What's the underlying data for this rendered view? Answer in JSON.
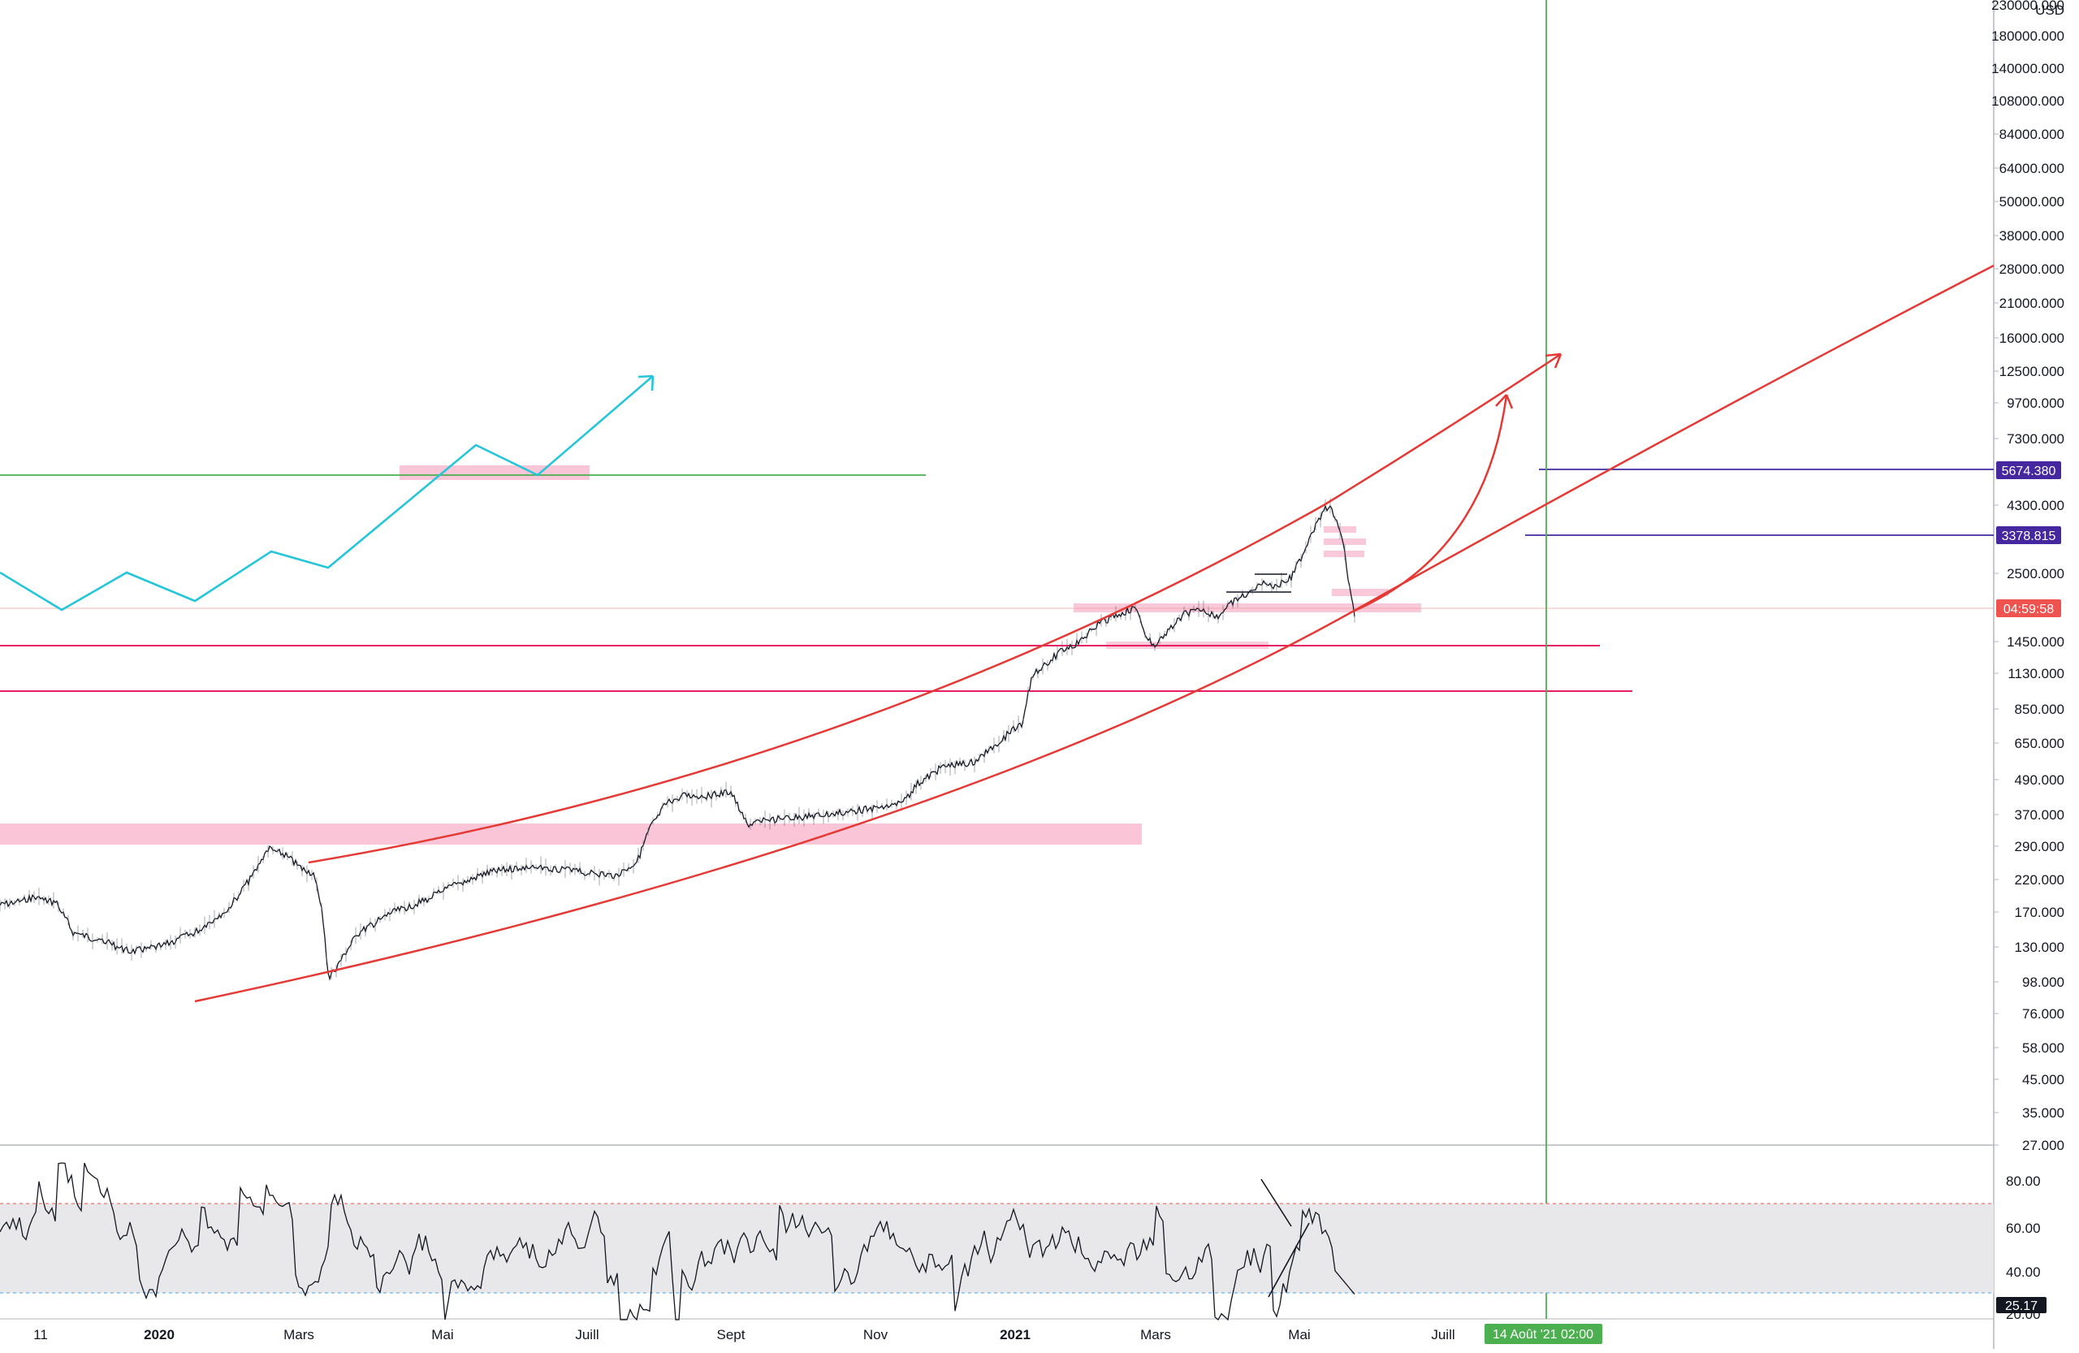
{
  "chart_data": {
    "type": "line",
    "title": "",
    "price_axis": {
      "currency": "USD",
      "scale": "log",
      "ticks": [
        "230000.000",
        "180000.000",
        "140000.000",
        "108000.000",
        "84000.000",
        "64000.000",
        "50000.000",
        "38000.000",
        "28000.000",
        "21000.000",
        "16000.000",
        "12500.000",
        "9700.000",
        "7300.000",
        "4300.000",
        "2500.000",
        "1450.000",
        "1130.000",
        "850.000",
        "650.000",
        "490.000",
        "370.000",
        "290.000",
        "220.000",
        "170.000",
        "130.000",
        "98.000",
        "76.000",
        "58.000",
        "45.000",
        "35.000",
        "27.000"
      ]
    },
    "price_badges": [
      {
        "label": "5674.380",
        "color": "#4527a0"
      },
      {
        "label": "3378.815",
        "color": "#4527a0"
      },
      {
        "label": "04:59:58",
        "color": "#ef5350"
      }
    ],
    "time_axis": {
      "ticks": [
        {
          "label": "11",
          "bold": false
        },
        {
          "label": "2020",
          "bold": true
        },
        {
          "label": "Mars",
          "bold": false
        },
        {
          "label": "Mai",
          "bold": false
        },
        {
          "label": "Juill",
          "bold": false
        },
        {
          "label": "Sept",
          "bold": false
        },
        {
          "label": "Nov",
          "bold": false
        },
        {
          "label": "2021",
          "bold": true
        },
        {
          "label": "Mars",
          "bold": false
        },
        {
          "label": "Mai",
          "bold": false
        },
        {
          "label": "Juill",
          "bold": false
        }
      ],
      "cursor_label": "14 Août '21   02:00"
    },
    "rsi": {
      "ticks": [
        "80.00",
        "60.00",
        "40.00",
        "20.00"
      ],
      "current_label": "25.17",
      "upper_band": 70,
      "lower_band": 30
    },
    "colors": {
      "channel": "#e53935",
      "hline_pink": "#e91e63",
      "hline_green": "#4caf50",
      "hline_purple": "#4527a0",
      "projection": "#26c6da",
      "zone": "#f8bbd0",
      "vline": "#4caf50",
      "price_line": "#131722"
    }
  }
}
